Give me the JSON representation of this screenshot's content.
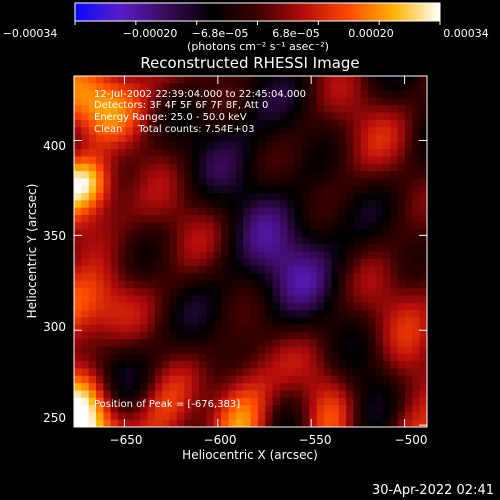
{
  "chart_data": {
    "type": "heatmap",
    "title": "Reconstructed RHESSI Image",
    "xlabel": "Heliocentric X (arcsec)",
    "ylabel": "Heliocentric Y (arcsec)",
    "xlim": [
      -677,
      -488
    ],
    "ylim": [
      249,
      434
    ],
    "x_ticks": [
      -650,
      -600,
      -550,
      -500
    ],
    "x_tick_labels": [
      "−650",
      "−600",
      "−550",
      "−500"
    ],
    "y_ticks": [
      250,
      300,
      350,
      400
    ],
    "y_tick_labels": [
      "250",
      "300",
      "350",
      "400"
    ],
    "colorbar": {
      "range": [
        -0.00034,
        0.00034
      ],
      "tick_labels": [
        "−0.00034",
        "−0.00020",
        "−6.8e−05",
        "6.8e−05",
        "0.00020",
        "0.00034"
      ],
      "unit_label": "(photons cm⁻² s⁻¹ asec⁻²)"
    },
    "colormap": [
      "#0a0aff",
      "#5a1cc8",
      "#3a0a5a",
      "#000000",
      "#3c0000",
      "#b40c0c",
      "#ff4a00",
      "#ffb400",
      "#ffffff"
    ],
    "annotations": {
      "time_range": "12-Jul-2002 22:39:04.000 to 22:45:04.000",
      "detectors": "Detectors: 3F 4F 5F 6F 7F 8F, Att 0",
      "energy_range": "Energy Range: 25.0 - 50.0 keV",
      "method_counts": "Clean     Total counts: 7.54E+03",
      "peak_position": "Position of Peak = [-676,383]"
    },
    "grid": false
  },
  "footer": {
    "timestamp": "30-Apr-2022 02:41"
  }
}
